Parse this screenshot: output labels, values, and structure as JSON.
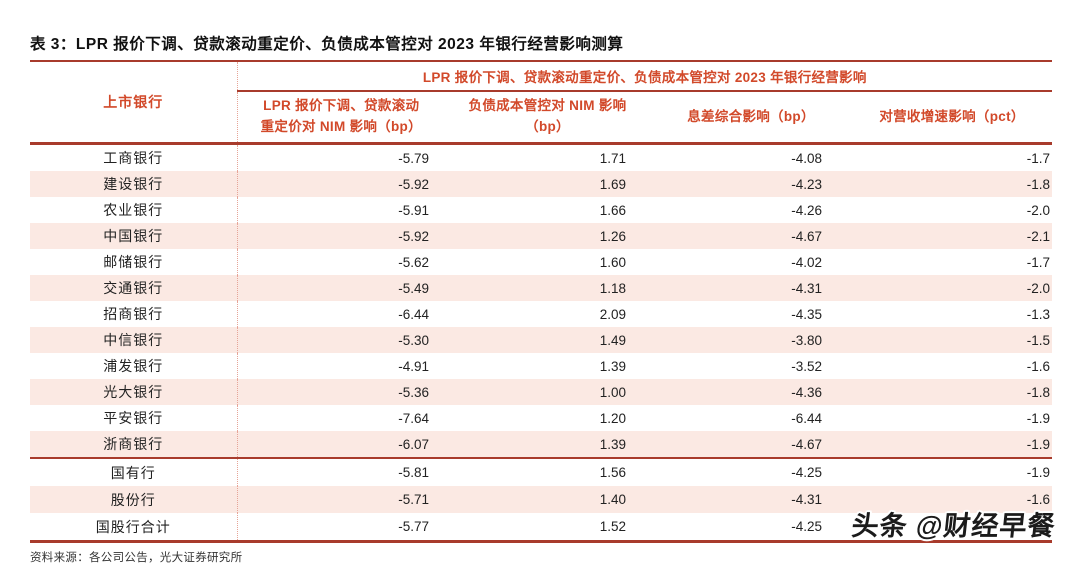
{
  "page": {
    "title": "表 3：LPR 报价下调、贷款滚动重定价、负债成本管控对 2023 年银行经营影响测算",
    "source_note": "资料来源：各公司公告，光大证券研究所",
    "watermark": "头条 @财经早餐"
  },
  "table": {
    "bank_column_header": "上市银行",
    "group_header": "LPR 报价下调、贷款滚动重定价、负债成本管控对 2023 年银行经营影响",
    "columns": [
      "LPR 报价下调、贷款滚动\n重定价对 NIM 影响（bp）",
      "负债成本管控对 NIM 影响\n（bp）",
      "息差综合影响（bp）",
      "对营收增速影响（pct）"
    ],
    "rows": [
      {
        "bank": "工商银行",
        "values": [
          "-5.79",
          "1.71",
          "-4.08",
          "-1.7"
        ]
      },
      {
        "bank": "建设银行",
        "values": [
          "-5.92",
          "1.69",
          "-4.23",
          "-1.8"
        ]
      },
      {
        "bank": "农业银行",
        "values": [
          "-5.91",
          "1.66",
          "-4.26",
          "-2.0"
        ]
      },
      {
        "bank": "中国银行",
        "values": [
          "-5.92",
          "1.26",
          "-4.67",
          "-2.1"
        ]
      },
      {
        "bank": "邮储银行",
        "values": [
          "-5.62",
          "1.60",
          "-4.02",
          "-1.7"
        ]
      },
      {
        "bank": "交通银行",
        "values": [
          "-5.49",
          "1.18",
          "-4.31",
          "-2.0"
        ]
      },
      {
        "bank": "招商银行",
        "values": [
          "-6.44",
          "2.09",
          "-4.35",
          "-1.3"
        ]
      },
      {
        "bank": "中信银行",
        "values": [
          "-5.30",
          "1.49",
          "-3.80",
          "-1.5"
        ]
      },
      {
        "bank": "浦发银行",
        "values": [
          "-4.91",
          "1.39",
          "-3.52",
          "-1.6"
        ]
      },
      {
        "bank": "光大银行",
        "values": [
          "-5.36",
          "1.00",
          "-4.36",
          "-1.8"
        ]
      },
      {
        "bank": "平安银行",
        "values": [
          "-7.64",
          "1.20",
          "-6.44",
          "-1.9"
        ]
      },
      {
        "bank": "浙商银行",
        "values": [
          "-6.07",
          "1.39",
          "-4.67",
          "-1.9"
        ]
      }
    ],
    "summary_rows": [
      {
        "bank": "国有行",
        "values": [
          "-5.81",
          "1.56",
          "-4.25",
          "-1.9"
        ]
      },
      {
        "bank": "股份行",
        "values": [
          "-5.71",
          "1.40",
          "-4.31",
          "-1.6"
        ]
      },
      {
        "bank": "国股行合计",
        "values": [
          "-5.77",
          "1.52",
          "-4.25",
          ""
        ]
      }
    ]
  },
  "colors": {
    "accent_text": "#d2492a",
    "rule_line": "#a83b2c",
    "row_alt_bg": "#fbe9e3",
    "divider_dotted": "#e6a497"
  }
}
